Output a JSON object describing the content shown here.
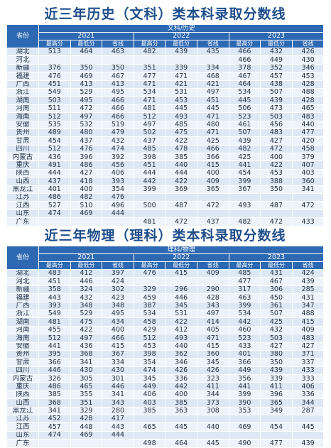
{
  "table1": {
    "title": "近三年历史（文科）类本科录取分数线",
    "header": {
      "prov": "省份",
      "category": "文科/历史",
      "years": [
        "2021",
        "2022",
        "2023"
      ],
      "sub": [
        "最高分",
        "最低分",
        "省线"
      ]
    },
    "rows": [
      {
        "prov": "湖北",
        "v": [
          "513",
          "464",
          "463",
          "482",
          "439",
          "435",
          "466",
          "432",
          "426"
        ]
      },
      {
        "prov": "河北",
        "v": [
          "",
          "",
          "",
          "",
          "",
          "",
          "466",
          "449",
          "430"
        ]
      },
      {
        "prov": "新疆",
        "v": [
          "376",
          "350",
          "350",
          "351",
          "339",
          "334",
          "378",
          "352",
          "346"
        ]
      },
      {
        "prov": "福建",
        "v": [
          "476",
          "469",
          "467",
          "477",
          "471",
          "468",
          "467",
          "457",
          "453"
        ]
      },
      {
        "prov": "广西",
        "v": [
          "451",
          "413",
          "413",
          "471",
          "421",
          "421",
          "464",
          "438",
          "428"
        ]
      },
      {
        "prov": "浙江",
        "v": [
          "549",
          "529",
          "495",
          "534",
          "531",
          "497",
          "534",
          "507",
          "488"
        ]
      },
      {
        "prov": "湖南",
        "v": [
          "503",
          "495",
          "466",
          "471",
          "453",
          "451",
          "445",
          "439",
          "428"
        ]
      },
      {
        "prov": "河南",
        "v": [
          "511",
          "472",
          "466",
          "481",
          "445",
          "445",
          "506",
          "473",
          "465"
        ]
      },
      {
        "prov": "海南",
        "v": [
          "512",
          "497",
          "466",
          "512",
          "493",
          "471",
          "523",
          "503",
          "483"
        ]
      },
      {
        "prov": "安徽",
        "v": [
          "535",
          "532",
          "519",
          "497",
          "485",
          "480",
          "461",
          "456",
          "440"
        ]
      },
      {
        "prov": "贵州",
        "v": [
          "489",
          "480",
          "479",
          "502",
          "475",
          "471",
          "507",
          "483",
          "477"
        ]
      },
      {
        "prov": "甘肃",
        "v": [
          "454",
          "437",
          "432",
          "437",
          "422",
          "425",
          "439",
          "427",
          "420"
        ]
      },
      {
        "prov": "四川",
        "v": [
          "512",
          "476",
          "474",
          "485",
          "478",
          "466",
          "482",
          "472",
          "458"
        ]
      },
      {
        "prov": "内蒙古",
        "v": [
          "436",
          "396",
          "392",
          "398",
          "385",
          "366",
          "425",
          "400",
          "379"
        ]
      },
      {
        "prov": "重庆",
        "v": [
          "491",
          "486",
          "456",
          "451",
          "440",
          "415",
          "441",
          "422",
          "407"
        ]
      },
      {
        "prov": "陕西",
        "v": [
          "444",
          "427",
          "406",
          "444",
          "444",
          "400",
          "454",
          "453",
          "403"
        ]
      },
      {
        "prov": "山西",
        "v": [
          "437",
          "418",
          "393",
          "442",
          "422",
          "409",
          "399",
          "388",
          "360"
        ]
      },
      {
        "prov": "黑龙江",
        "v": [
          "401",
          "400",
          "354",
          "399",
          "369",
          "365",
          "367",
          "350",
          "341"
        ]
      },
      {
        "prov": "江苏",
        "v": [
          "486",
          "482",
          "476",
          "",
          "",
          "",
          "",
          "",
          ""
        ]
      },
      {
        "prov": "江西",
        "v": [
          "527",
          "510",
          "496",
          "500",
          "487",
          "472",
          "493",
          "487",
          "472"
        ]
      },
      {
        "prov": "山东",
        "v": [
          "474",
          "469",
          "444",
          "",
          "",
          "",
          "",
          "",
          ""
        ]
      },
      {
        "prov": "广东",
        "v": [
          "",
          "",
          "",
          "481",
          "472",
          "437",
          "482",
          "472",
          "433"
        ]
      }
    ]
  },
  "table2": {
    "title": "近三年物理（理科）类本科录取分数线",
    "header": {
      "prov": "省份",
      "category": "理科/物理",
      "years": [
        "2021",
        "2022",
        "2023"
      ],
      "sub": [
        "最高分",
        "最低分",
        "省线"
      ]
    },
    "rows": [
      {
        "prov": "湖北",
        "v": [
          "483",
          "412",
          "397",
          "476",
          "415",
          "409",
          "485",
          "431",
          "424"
        ]
      },
      {
        "prov": "河北",
        "v": [
          "451",
          "446",
          "424",
          "",
          "",
          "",
          "477",
          "467",
          "439"
        ]
      },
      {
        "prov": "新疆",
        "v": [
          "358",
          "324",
          "302",
          "329",
          "296",
          "290",
          "317",
          "306",
          "285"
        ]
      },
      {
        "prov": "福建",
        "v": [
          "443",
          "432",
          "423",
          "459",
          "446",
          "428",
          "463",
          "450",
          "431"
        ]
      },
      {
        "prov": "广西",
        "v": [
          "393",
          "348",
          "348",
          "387",
          "345",
          "343",
          "399",
          "361",
          "347"
        ]
      },
      {
        "prov": "浙江",
        "v": [
          "549",
          "529",
          "495",
          "534",
          "531",
          "497",
          "534",
          "507",
          "488"
        ]
      },
      {
        "prov": "湖南",
        "v": [
          "481",
          "475",
          "434",
          "458",
          "422",
          "414",
          "442",
          "425",
          "415"
        ]
      },
      {
        "prov": "河南",
        "v": [
          "455",
          "422",
          "400",
          "429",
          "412",
          "405",
          "460",
          "432",
          "409"
        ]
      },
      {
        "prov": "海南",
        "v": [
          "512",
          "497",
          "466",
          "512",
          "493",
          "471",
          "523",
          "503",
          "483"
        ]
      },
      {
        "prov": "安徽",
        "v": [
          "441",
          "436",
          "415",
          "453",
          "440",
          "415",
          "433",
          "427",
          "427"
        ]
      },
      {
        "prov": "贵州",
        "v": [
          "395",
          "368",
          "367",
          "398",
          "362",
          "360",
          "401",
          "380",
          "371"
        ]
      },
      {
        "prov": "甘肃",
        "v": [
          "366",
          "341",
          "334",
          "354",
          "346",
          "345",
          "366",
          "350",
          "337"
        ]
      },
      {
        "prov": "四川",
        "v": [
          "446",
          "430",
          "430",
          "474",
          "426",
          "426",
          "449",
          "439",
          "433"
        ]
      },
      {
        "prov": "内蒙古",
        "v": [
          "326",
          "305",
          "301",
          "345",
          "336",
          "323",
          "356",
          "339",
          "333"
        ]
      },
      {
        "prov": "重庆",
        "v": [
          "486",
          "465",
          "446",
          "449",
          "442",
          "411",
          "441",
          "411",
          "406"
        ]
      },
      {
        "prov": "陕西",
        "v": [
          "385",
          "355",
          "341",
          "406",
          "400",
          "344",
          "399",
          "396",
          "336"
        ]
      },
      {
        "prov": "山西",
        "v": [
          "368",
          "351",
          "343",
          "403",
          "385",
          "373",
          "390",
          "365",
          "344"
        ]
      },
      {
        "prov": "黑龙江",
        "v": [
          "341",
          "329",
          "280",
          "385",
          "363",
          "308",
          "353",
          "349",
          "287"
        ]
      },
      {
        "prov": "江苏",
        "v": [
          "452",
          "428",
          "417",
          "",
          "",
          "",
          "",
          "",
          ""
        ]
      },
      {
        "prov": "江西",
        "v": [
          "457",
          "448",
          "443",
          "465",
          "445",
          "440",
          "469",
          "454",
          "445"
        ]
      },
      {
        "prov": "山东",
        "v": [
          "474",
          "469",
          "444",
          "",
          "",
          "",
          "",
          "",
          ""
        ]
      },
      {
        "prov": "广东",
        "v": [
          "",
          "",
          "",
          "498",
          "464",
          "445",
          "490",
          "477",
          "439"
        ]
      }
    ]
  }
}
